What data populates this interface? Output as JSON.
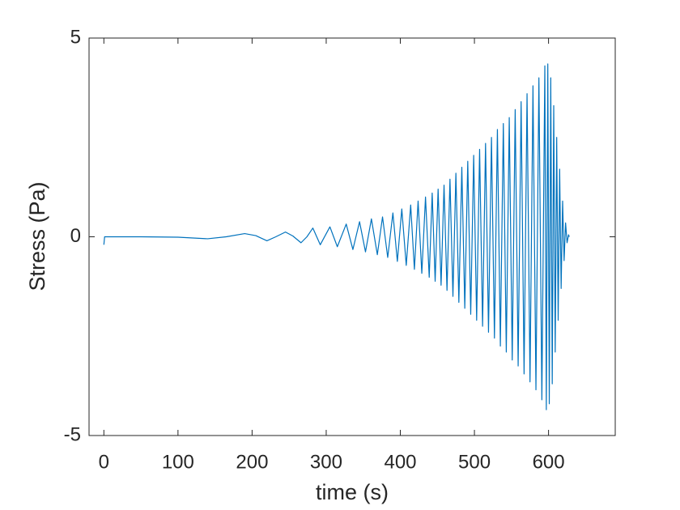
{
  "chart_data": {
    "type": "line",
    "xlabel": "time (s)",
    "ylabel": "Stress (Pa)",
    "color": "#0072bd",
    "xlim": [
      -20,
      690
    ],
    "ylim": [
      -5,
      5
    ],
    "xticks": [
      0,
      100,
      200,
      300,
      400,
      500,
      600
    ],
    "yticks": [
      -5,
      0,
      5
    ],
    "x": [
      0,
      1,
      50,
      100,
      140,
      165,
      190,
      205,
      220,
      232,
      245,
      255,
      266,
      274,
      282,
      292,
      305,
      315,
      327,
      336,
      345,
      353,
      361,
      369,
      376,
      383,
      390,
      396,
      402,
      408,
      414,
      419,
      424,
      429,
      434,
      439,
      443,
      447,
      451,
      455,
      459,
      463,
      467,
      471,
      475,
      479,
      483,
      487,
      491,
      495,
      499,
      503,
      507,
      511,
      515,
      519,
      523,
      527,
      531,
      535,
      539,
      543,
      547,
      551,
      555,
      559,
      563,
      567,
      571,
      575,
      579,
      583,
      587,
      591,
      595,
      597,
      599,
      601,
      603,
      605,
      607,
      609,
      611,
      613,
      615,
      617,
      619,
      621,
      623,
      625,
      627,
      628
    ],
    "values": [
      -0.2,
      0,
      0,
      -0.01,
      -0.05,
      0,
      0.08,
      0.03,
      -0.1,
      0,
      0.12,
      0.02,
      -0.15,
      0,
      0.22,
      -0.2,
      0.25,
      -0.25,
      0.32,
      -0.32,
      0.38,
      -0.38,
      0.45,
      -0.45,
      0.5,
      -0.52,
      0.6,
      -0.62,
      0.7,
      -0.72,
      0.8,
      -0.82,
      0.9,
      -0.92,
      1.0,
      -1.02,
      1.1,
      -1.12,
      1.2,
      -1.22,
      1.3,
      -1.35,
      1.45,
      -1.5,
      1.6,
      -1.65,
      1.75,
      -1.8,
      1.9,
      -1.95,
      2.05,
      -2.1,
      2.2,
      -2.25,
      2.35,
      -2.4,
      2.5,
      -2.55,
      2.7,
      -2.75,
      2.85,
      -2.9,
      3.0,
      -3.1,
      3.2,
      -3.25,
      3.4,
      -3.45,
      3.6,
      -3.65,
      3.8,
      -3.85,
      4.0,
      -4.1,
      4.3,
      -4.35,
      4.35,
      -4.2,
      4.0,
      -3.7,
      3.3,
      -2.9,
      2.5,
      -2.1,
      1.7,
      -1.3,
      0.9,
      -0.6,
      0.35,
      -0.15,
      0.05,
      0
    ]
  }
}
